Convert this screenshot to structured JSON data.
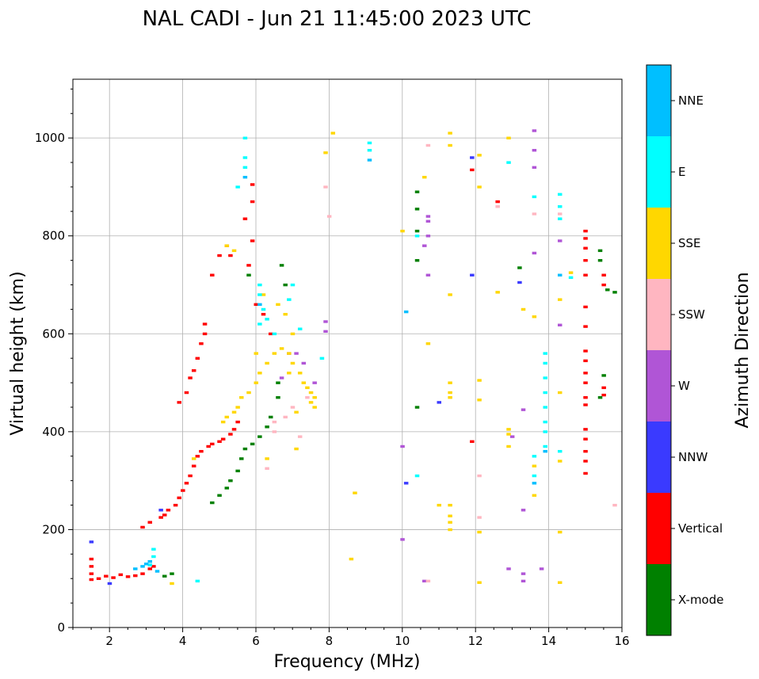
{
  "chart_data": {
    "type": "scatter",
    "title": "NAL CADI - Jun 21 11:45:00 2023 UTC",
    "xlabel": "Frequency (MHz)",
    "ylabel": "Virtual height (km)",
    "xlim": [
      1,
      16
    ],
    "ylim": [
      0,
      1120
    ],
    "xticks": [
      2,
      4,
      6,
      8,
      10,
      12,
      14,
      16
    ],
    "yticks": [
      0,
      200,
      400,
      600,
      800,
      1000
    ],
    "xtick_labels": [
      "2",
      "4",
      "6",
      "8",
      "10",
      "12",
      "14",
      "16"
    ],
    "ytick_labels": [
      "0",
      "200",
      "400",
      "600",
      "800",
      "1000"
    ],
    "grid": true,
    "colorbar": {
      "label": "Azimuth Direction",
      "categories": [
        {
          "name": "X-mode",
          "color": "#008000"
        },
        {
          "name": "Vertical",
          "color": "#ff0000"
        },
        {
          "name": "NNW",
          "color": "#3a3aff"
        },
        {
          "name": "W",
          "color": "#b055d6"
        },
        {
          "name": "SSW",
          "color": "#ffb6c1"
        },
        {
          "name": "SSE",
          "color": "#ffd700"
        },
        {
          "name": "E",
          "color": "#00ffff"
        },
        {
          "name": "NNE",
          "color": "#00bfff"
        }
      ]
    },
    "series": [
      {
        "name": "Vertical",
        "color": "#ff0000",
        "points": [
          [
            1.5,
            98
          ],
          [
            1.5,
            110
          ],
          [
            1.5,
            125
          ],
          [
            1.5,
            140
          ],
          [
            1.7,
            100
          ],
          [
            1.9,
            105
          ],
          [
            2.1,
            102
          ],
          [
            2.3,
            108
          ],
          [
            2.5,
            104
          ],
          [
            2.7,
            106
          ],
          [
            2.9,
            110
          ],
          [
            3.1,
            120
          ],
          [
            3.2,
            125
          ],
          [
            2.9,
            205
          ],
          [
            3.1,
            215
          ],
          [
            3.4,
            225
          ],
          [
            3.5,
            230
          ],
          [
            3.6,
            240
          ],
          [
            3.8,
            250
          ],
          [
            3.9,
            265
          ],
          [
            4.0,
            280
          ],
          [
            4.1,
            295
          ],
          [
            4.2,
            310
          ],
          [
            4.3,
            330
          ],
          [
            4.4,
            350
          ],
          [
            4.5,
            360
          ],
          [
            4.7,
            370
          ],
          [
            4.8,
            375
          ],
          [
            5.0,
            380
          ],
          [
            5.1,
            385
          ],
          [
            5.3,
            395
          ],
          [
            5.4,
            405
          ],
          [
            5.5,
            420
          ],
          [
            3.9,
            460
          ],
          [
            4.1,
            480
          ],
          [
            4.2,
            510
          ],
          [
            4.3,
            525
          ],
          [
            4.4,
            550
          ],
          [
            4.5,
            580
          ],
          [
            4.6,
            600
          ],
          [
            4.6,
            620
          ],
          [
            4.8,
            720
          ],
          [
            5.0,
            760
          ],
          [
            5.2,
            780
          ],
          [
            5.3,
            760
          ],
          [
            5.7,
            835
          ],
          [
            5.9,
            870
          ],
          [
            5.9,
            905
          ],
          [
            5.9,
            790
          ],
          [
            5.8,
            740
          ],
          [
            6.0,
            660
          ],
          [
            6.2,
            640
          ],
          [
            6.4,
            600
          ],
          [
            11.9,
            380
          ],
          [
            11.9,
            935
          ],
          [
            15.0,
            315
          ],
          [
            15.0,
            340
          ],
          [
            15.0,
            360
          ],
          [
            15.0,
            385
          ],
          [
            15.0,
            405
          ],
          [
            15.0,
            455
          ],
          [
            15.0,
            470
          ],
          [
            15.0,
            500
          ],
          [
            15.0,
            520
          ],
          [
            15.0,
            545
          ],
          [
            15.0,
            565
          ],
          [
            15.0,
            615
          ],
          [
            15.0,
            655
          ],
          [
            15.0,
            720
          ],
          [
            15.0,
            750
          ],
          [
            15.0,
            775
          ],
          [
            15.0,
            795
          ],
          [
            15.0,
            810
          ],
          [
            15.5,
            475
          ],
          [
            15.5,
            490
          ],
          [
            15.5,
            720
          ],
          [
            15.5,
            700
          ],
          [
            12.6,
            870
          ]
        ]
      },
      {
        "name": "X-mode",
        "color": "#008000",
        "points": [
          [
            3.5,
            105
          ],
          [
            3.7,
            110
          ],
          [
            4.8,
            255
          ],
          [
            5.0,
            270
          ],
          [
            5.2,
            285
          ],
          [
            5.3,
            300
          ],
          [
            5.5,
            320
          ],
          [
            5.6,
            345
          ],
          [
            5.7,
            365
          ],
          [
            5.9,
            375
          ],
          [
            6.1,
            390
          ],
          [
            6.3,
            410
          ],
          [
            6.4,
            430
          ],
          [
            6.6,
            470
          ],
          [
            6.7,
            740
          ],
          [
            6.8,
            700
          ],
          [
            5.8,
            720
          ],
          [
            6.6,
            500
          ],
          [
            10.4,
            890
          ],
          [
            10.4,
            855
          ],
          [
            10.4,
            810
          ],
          [
            10.4,
            750
          ],
          [
            10.4,
            450
          ],
          [
            13.2,
            735
          ],
          [
            15.4,
            770
          ],
          [
            15.4,
            750
          ],
          [
            15.6,
            690
          ],
          [
            15.8,
            685
          ],
          [
            15.5,
            515
          ],
          [
            15.4,
            470
          ]
        ]
      },
      {
        "name": "NNW",
        "color": "#3a3aff",
        "points": [
          [
            1.5,
            175
          ],
          [
            2.0,
            90
          ],
          [
            3.4,
            240
          ],
          [
            10.1,
            295
          ],
          [
            11.0,
            460
          ],
          [
            11.9,
            720
          ],
          [
            11.9,
            960
          ],
          [
            13.2,
            705
          ]
        ]
      },
      {
        "name": "W",
        "color": "#b055d6",
        "points": [
          [
            6.7,
            510
          ],
          [
            6.9,
            560
          ],
          [
            7.1,
            560
          ],
          [
            7.3,
            540
          ],
          [
            7.6,
            500
          ],
          [
            7.9,
            625
          ],
          [
            7.9,
            605
          ],
          [
            10.0,
            180
          ],
          [
            10.6,
            95
          ],
          [
            10.7,
            840
          ],
          [
            10.7,
            830
          ],
          [
            10.7,
            800
          ],
          [
            10.6,
            780
          ],
          [
            10.7,
            720
          ],
          [
            12.9,
            120
          ],
          [
            13.3,
            240
          ],
          [
            13.3,
            445
          ],
          [
            13.3,
            95
          ],
          [
            13.3,
            110
          ],
          [
            13.6,
            1015
          ],
          [
            13.6,
            975
          ],
          [
            13.6,
            940
          ],
          [
            13.6,
            765
          ],
          [
            13.8,
            120
          ],
          [
            14.3,
            790
          ],
          [
            14.3,
            618
          ],
          [
            10.0,
            370
          ],
          [
            13.0,
            390
          ]
        ]
      },
      {
        "name": "SSW",
        "color": "#ffb6c1",
        "points": [
          [
            6.3,
            325
          ],
          [
            6.5,
            400
          ],
          [
            6.5,
            420
          ],
          [
            6.8,
            430
          ],
          [
            7.0,
            450
          ],
          [
            7.2,
            390
          ],
          [
            7.4,
            470
          ],
          [
            8.0,
            840
          ],
          [
            7.9,
            900
          ],
          [
            10.7,
            985
          ],
          [
            12.1,
            310
          ],
          [
            12.1,
            225
          ],
          [
            12.6,
            860
          ],
          [
            13.6,
            845
          ],
          [
            14.3,
            845
          ],
          [
            15.8,
            250
          ],
          [
            10.7,
            95
          ]
        ]
      },
      {
        "name": "SSE",
        "color": "#ffd700",
        "points": [
          [
            3.7,
            90
          ],
          [
            4.3,
            345
          ],
          [
            5.1,
            420
          ],
          [
            5.2,
            430
          ],
          [
            5.4,
            440
          ],
          [
            5.5,
            450
          ],
          [
            5.6,
            470
          ],
          [
            5.8,
            480
          ],
          [
            6.0,
            500
          ],
          [
            6.1,
            520
          ],
          [
            6.3,
            540
          ],
          [
            6.5,
            560
          ],
          [
            6.7,
            570
          ],
          [
            6.9,
            560
          ],
          [
            7.0,
            540
          ],
          [
            7.2,
            520
          ],
          [
            7.3,
            500
          ],
          [
            7.4,
            490
          ],
          [
            7.5,
            480
          ],
          [
            7.6,
            470
          ],
          [
            7.6,
            450
          ],
          [
            7.5,
            460
          ],
          [
            7.1,
            440
          ],
          [
            6.9,
            520
          ],
          [
            7.0,
            600
          ],
          [
            6.8,
            640
          ],
          [
            6.6,
            660
          ],
          [
            6.2,
            680
          ],
          [
            6.0,
            560
          ],
          [
            5.4,
            770
          ],
          [
            5.2,
            780
          ],
          [
            6.3,
            345
          ],
          [
            7.1,
            365
          ],
          [
            8.1,
            1010
          ],
          [
            7.9,
            970
          ],
          [
            8.6,
            140
          ],
          [
            8.7,
            275
          ],
          [
            10.0,
            810
          ],
          [
            10.6,
            920
          ],
          [
            10.7,
            580
          ],
          [
            11.0,
            250
          ],
          [
            11.3,
            1010
          ],
          [
            11.3,
            985
          ],
          [
            11.3,
            680
          ],
          [
            11.3,
            500
          ],
          [
            11.3,
            480
          ],
          [
            11.3,
            470
          ],
          [
            11.3,
            250
          ],
          [
            11.3,
            228
          ],
          [
            11.3,
            215
          ],
          [
            11.3,
            200
          ],
          [
            12.1,
            965
          ],
          [
            12.1,
            900
          ],
          [
            12.1,
            505
          ],
          [
            12.1,
            465
          ],
          [
            12.1,
            195
          ],
          [
            12.1,
            92
          ],
          [
            12.9,
            405
          ],
          [
            12.9,
            395
          ],
          [
            12.9,
            370
          ],
          [
            12.9,
            1000
          ],
          [
            12.6,
            685
          ],
          [
            13.3,
            650
          ],
          [
            13.6,
            635
          ],
          [
            13.6,
            330
          ],
          [
            13.6,
            270
          ],
          [
            14.3,
            670
          ],
          [
            14.3,
            480
          ],
          [
            14.3,
            340
          ],
          [
            14.3,
            195
          ],
          [
            14.3,
            92
          ],
          [
            14.6,
            725
          ]
        ]
      },
      {
        "name": "E",
        "color": "#00ffff",
        "points": [
          [
            3.1,
            128
          ],
          [
            3.2,
            145
          ],
          [
            3.2,
            160
          ],
          [
            4.4,
            95
          ],
          [
            5.5,
            900
          ],
          [
            5.7,
            940
          ],
          [
            5.7,
            1000
          ],
          [
            5.7,
            960
          ],
          [
            6.1,
            700
          ],
          [
            6.1,
            680
          ],
          [
            6.2,
            650
          ],
          [
            6.1,
            620
          ],
          [
            6.3,
            630
          ],
          [
            6.5,
            600
          ],
          [
            6.9,
            670
          ],
          [
            7.0,
            700
          ],
          [
            7.2,
            610
          ],
          [
            7.8,
            550
          ],
          [
            9.1,
            990
          ],
          [
            9.1,
            975
          ],
          [
            10.4,
            800
          ],
          [
            10.4,
            310
          ],
          [
            12.9,
            950
          ],
          [
            13.6,
            880
          ],
          [
            13.6,
            350
          ],
          [
            13.6,
            310
          ],
          [
            13.9,
            560
          ],
          [
            13.9,
            540
          ],
          [
            13.9,
            510
          ],
          [
            13.9,
            480
          ],
          [
            13.9,
            450
          ],
          [
            13.9,
            420
          ],
          [
            13.9,
            400
          ],
          [
            13.9,
            370
          ],
          [
            14.3,
            885
          ],
          [
            14.3,
            860
          ],
          [
            14.3,
            835
          ],
          [
            14.3,
            360
          ],
          [
            14.6,
            715
          ]
        ]
      },
      {
        "name": "NNE",
        "color": "#00bfff",
        "points": [
          [
            2.7,
            120
          ],
          [
            2.9,
            125
          ],
          [
            3.0,
            130
          ],
          [
            3.1,
            135
          ],
          [
            3.3,
            115
          ],
          [
            5.7,
            920
          ],
          [
            6.1,
            660
          ],
          [
            9.1,
            955
          ],
          [
            10.1,
            645
          ],
          [
            13.6,
            295
          ],
          [
            13.9,
            360
          ],
          [
            14.3,
            720
          ]
        ]
      }
    ]
  }
}
